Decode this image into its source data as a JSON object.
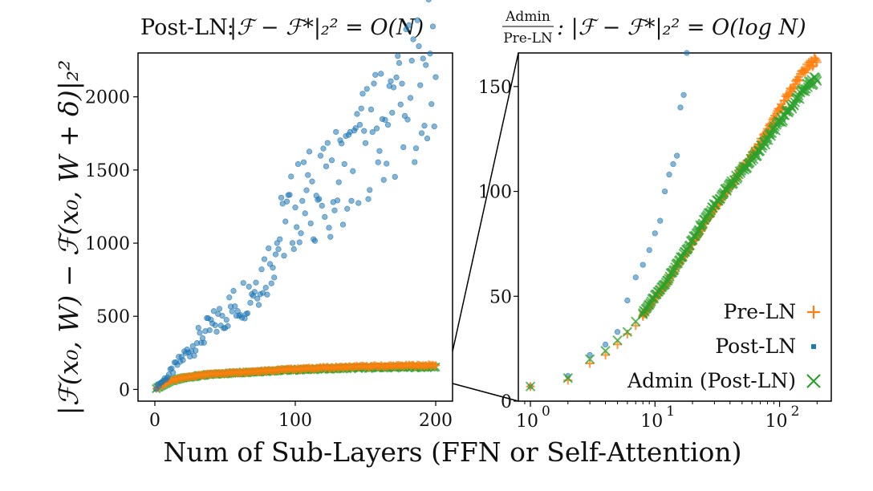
{
  "figure": {
    "xlabel": "Num of Sub-Layers (FFN or Self-Attention)",
    "ylabel": "|ℱ(x₀, W) − ℱ(x₀, W + δ)|₂²",
    "colors": {
      "post_ln": "#1f77b4",
      "pre_ln": "#ff7f0e",
      "admin": "#2ca02c"
    }
  },
  "chart_data": [
    {
      "type": "scatter",
      "title_prefix": "Post-LN:",
      "title_math": "|ℱ − ℱ*|₂² = O(N)",
      "xlim": [
        -12,
        212
      ],
      "ylim": [
        -80,
        2300
      ],
      "xticks": [
        0,
        100,
        200
      ],
      "yticks": [
        0,
        500,
        1000,
        1500,
        2000
      ],
      "series": [
        {
          "name": "Post-LN",
          "marker": "dot",
          "x": [
            1,
            10,
            20,
            30,
            40,
            50,
            60,
            70,
            80,
            90,
            100,
            110,
            120,
            130,
            140,
            150,
            160,
            170,
            180,
            190,
            200
          ],
          "y": [
            15,
            100,
            220,
            330,
            420,
            520,
            600,
            700,
            840,
            1080,
            1250,
            1330,
            1320,
            1460,
            1520,
            1700,
            1780,
            1900,
            2000,
            2140,
            2170
          ]
        },
        {
          "name": "Pre-LN",
          "marker": "plus",
          "x": [
            1,
            10,
            20,
            30,
            40,
            50,
            60,
            70,
            80,
            90,
            100,
            110,
            120,
            130,
            140,
            150,
            160,
            170,
            180,
            190,
            200
          ],
          "y": [
            7,
            55,
            80,
            95,
            105,
            112,
            118,
            124,
            130,
            135,
            140,
            144,
            148,
            151,
            154,
            157,
            159,
            161,
            163,
            164,
            165
          ]
        },
        {
          "name": "Admin (Post-LN)",
          "marker": "x",
          "x": [
            1,
            10,
            20,
            30,
            40,
            50,
            60,
            70,
            80,
            90,
            100,
            110,
            120,
            130,
            140,
            150,
            160,
            170,
            180,
            190,
            200
          ],
          "y": [
            7,
            52,
            78,
            92,
            102,
            109,
            115,
            120,
            126,
            130,
            134,
            138,
            141,
            144,
            146,
            148,
            150,
            151,
            152,
            153,
            154
          ]
        }
      ]
    },
    {
      "type": "scatter",
      "xscale": "log",
      "title_top": "Admin",
      "title_bottom": "Pre-LN",
      "title_math": ": |ℱ − ℱ*|₂² = O(log N)",
      "xlim": [
        0.8,
        260
      ],
      "ylim": [
        0,
        166
      ],
      "xticks": [
        1,
        10,
        100
      ],
      "xtick_labels": [
        "10",
        "10",
        "10"
      ],
      "xtick_exponents": [
        "0",
        "1",
        "2"
      ],
      "yticks": [
        0,
        50,
        100,
        150
      ],
      "legend": {
        "position": "bottom-right",
        "entries": [
          "Pre-LN",
          "Post-LN",
          "Admin (Post-LN)"
        ]
      },
      "series": [
        {
          "name": "Post-LN",
          "marker": "dot",
          "x": [
            1,
            2,
            3,
            4,
            5,
            6,
            7,
            8,
            9,
            10,
            11,
            12,
            13,
            14,
            15,
            16,
            17,
            18
          ],
          "y": [
            7,
            12,
            22,
            27,
            33,
            48,
            59,
            65,
            72,
            80,
            86,
            100,
            108,
            113,
            117,
            140,
            146,
            166
          ]
        },
        {
          "name": "Pre-LN",
          "marker": "plus",
          "x": [
            1,
            2,
            3,
            4,
            5,
            6,
            7,
            8,
            10,
            12,
            15,
            20,
            25,
            30,
            40,
            50,
            60,
            80,
            100,
            120,
            150,
            180,
            200
          ],
          "y": [
            7,
            10,
            18,
            22,
            27,
            32,
            36,
            41,
            49,
            55,
            64,
            75,
            85,
            92,
            102,
            111,
            117,
            129,
            139,
            147,
            156,
            161,
            163
          ]
        },
        {
          "name": "Admin (Post-LN)",
          "marker": "x",
          "x": [
            1,
            2,
            3,
            4,
            5,
            6,
            7,
            8,
            10,
            12,
            15,
            20,
            25,
            30,
            40,
            50,
            60,
            80,
            100,
            120,
            150,
            180,
            200
          ],
          "y": [
            7,
            11,
            20,
            24,
            29,
            33,
            38,
            42,
            50,
            56,
            65,
            77,
            87,
            94,
            103,
            110,
            115,
            125,
            133,
            139,
            147,
            152,
            154
          ]
        }
      ]
    }
  ]
}
